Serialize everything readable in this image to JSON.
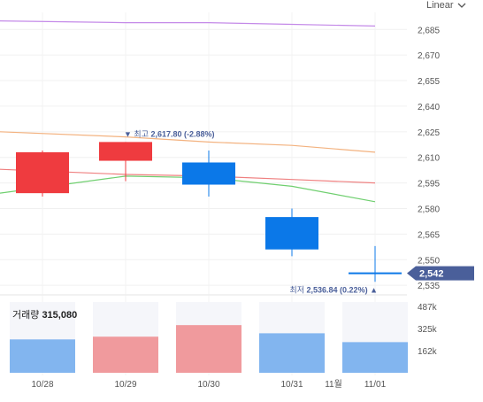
{
  "scale_toggle": {
    "label": "Linear",
    "icon": "chevron-down-icon"
  },
  "chart_data": {
    "type": "candlestick",
    "categories": [
      "10/28",
      "10/29",
      "10/30",
      "10/31",
      "11/01"
    ],
    "candles": [
      {
        "date": "10/28",
        "open": 2589,
        "close": 2613,
        "high": 2614,
        "low": 2587,
        "color": "#ef3b3f"
      },
      {
        "date": "10/29",
        "open": 2608,
        "close": 2619,
        "high": 2619,
        "low": 2596,
        "color": "#ef3b3f"
      },
      {
        "date": "10/30",
        "open": 2607,
        "close": 2594,
        "high": 2614,
        "low": 2587,
        "color": "#0b78e8"
      },
      {
        "date": "10/31",
        "open": 2575,
        "close": 2556,
        "high": 2580,
        "low": 2552,
        "color": "#0b78e8"
      },
      {
        "date": "11/01",
        "open": 2542,
        "close": 2542,
        "high": 2558,
        "low": 2537,
        "color": "#0b78e8"
      }
    ],
    "moving_averages": [
      {
        "color": "#c48ae8",
        "values": [
          2690,
          2689,
          2689,
          2688,
          2687
        ]
      },
      {
        "color": "#f3b27f",
        "values": [
          2625,
          2622,
          2619,
          2617,
          2613
        ]
      },
      {
        "color": "#ef8080",
        "values": [
          2603,
          2600,
          2599,
          2597,
          2595
        ]
      },
      {
        "color": "#6fcf6f",
        "values": [
          2589,
          2599,
          2598,
          2593,
          2584
        ]
      }
    ],
    "y_ticks": [
      "2,685",
      "2,670",
      "2,655",
      "2,640",
      "2,625",
      "2,610",
      "2,595",
      "2,580",
      "2,565",
      "2,550",
      "2,535"
    ],
    "ylim": [
      2533,
      2695
    ],
    "current_price": {
      "label": "2,542",
      "value": 2542
    },
    "high_annotation": {
      "prefix": "▼ 최고",
      "value_text": "2,617.80 (-2.88%)"
    },
    "low_annotation": {
      "prefix": "최저",
      "value_text": "2,536.84 (0.22%)",
      "suffix": "▲"
    },
    "volume": {
      "label": "거래량",
      "value_text": "315,080",
      "values": [
        245000,
        265000,
        350000,
        290000,
        225000
      ],
      "colors": [
        "#82b5ef",
        "#f09a9d",
        "#f09a9d",
        "#82b5ef",
        "#82b5ef"
      ],
      "ticks": [
        "487k",
        "325k",
        "162k"
      ],
      "ylim": [
        0,
        520000
      ]
    },
    "month_label": "11월",
    "grid": true
  }
}
